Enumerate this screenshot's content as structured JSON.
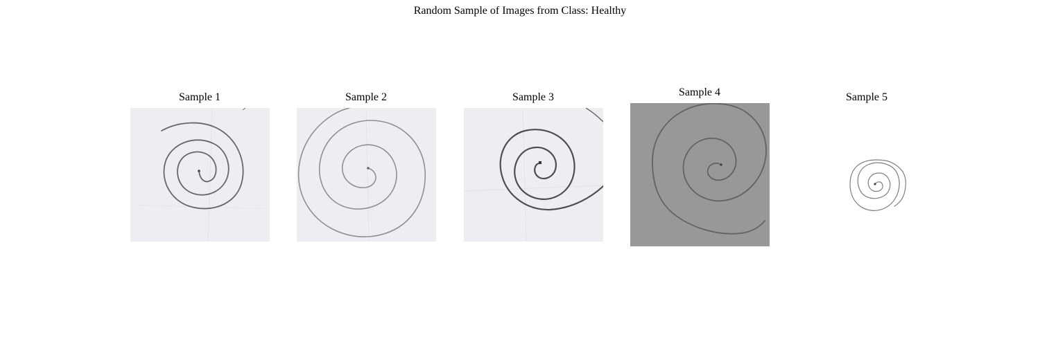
{
  "figure": {
    "title": "Random Sample of Images from Class: Healthy"
  },
  "panels": [
    {
      "label": "Sample 1"
    },
    {
      "label": "Sample 2"
    },
    {
      "label": "Sample 3"
    },
    {
      "label": "Sample 4"
    },
    {
      "label": "Sample 5"
    }
  ],
  "colors": {
    "paper_light": "#eeeef2",
    "paper_gray": "#989898",
    "ink_dark": "#555555",
    "ink_light": "#8a8a8a"
  }
}
